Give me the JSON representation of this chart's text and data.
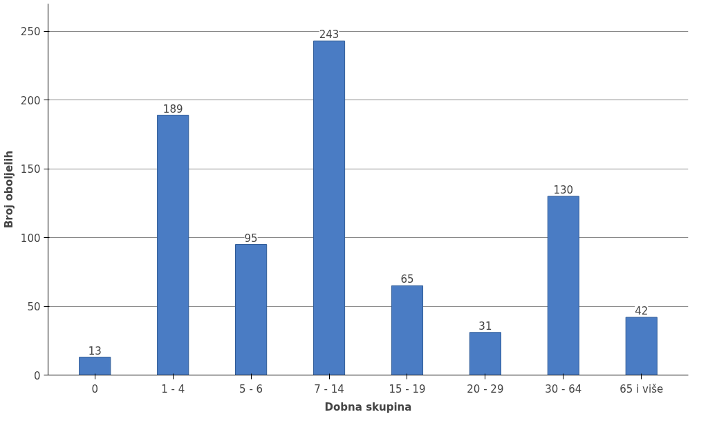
{
  "chart_data": {
    "type": "bar",
    "xlabel": "Dobna skupina",
    "ylabel": "Broj oboljelih",
    "categories": [
      "0",
      "1 - 4",
      "5 - 6",
      "7 - 14",
      "15 - 19",
      "20 - 29",
      "30 - 64",
      "65 i više"
    ],
    "values": [
      13,
      189,
      95,
      243,
      65,
      31,
      130,
      42
    ],
    "color": "#4a7cc4",
    "ylim": [
      0,
      270
    ],
    "yticks": [
      0,
      50,
      100,
      150,
      200,
      250
    ],
    "grid": "y",
    "data_labels": true
  }
}
